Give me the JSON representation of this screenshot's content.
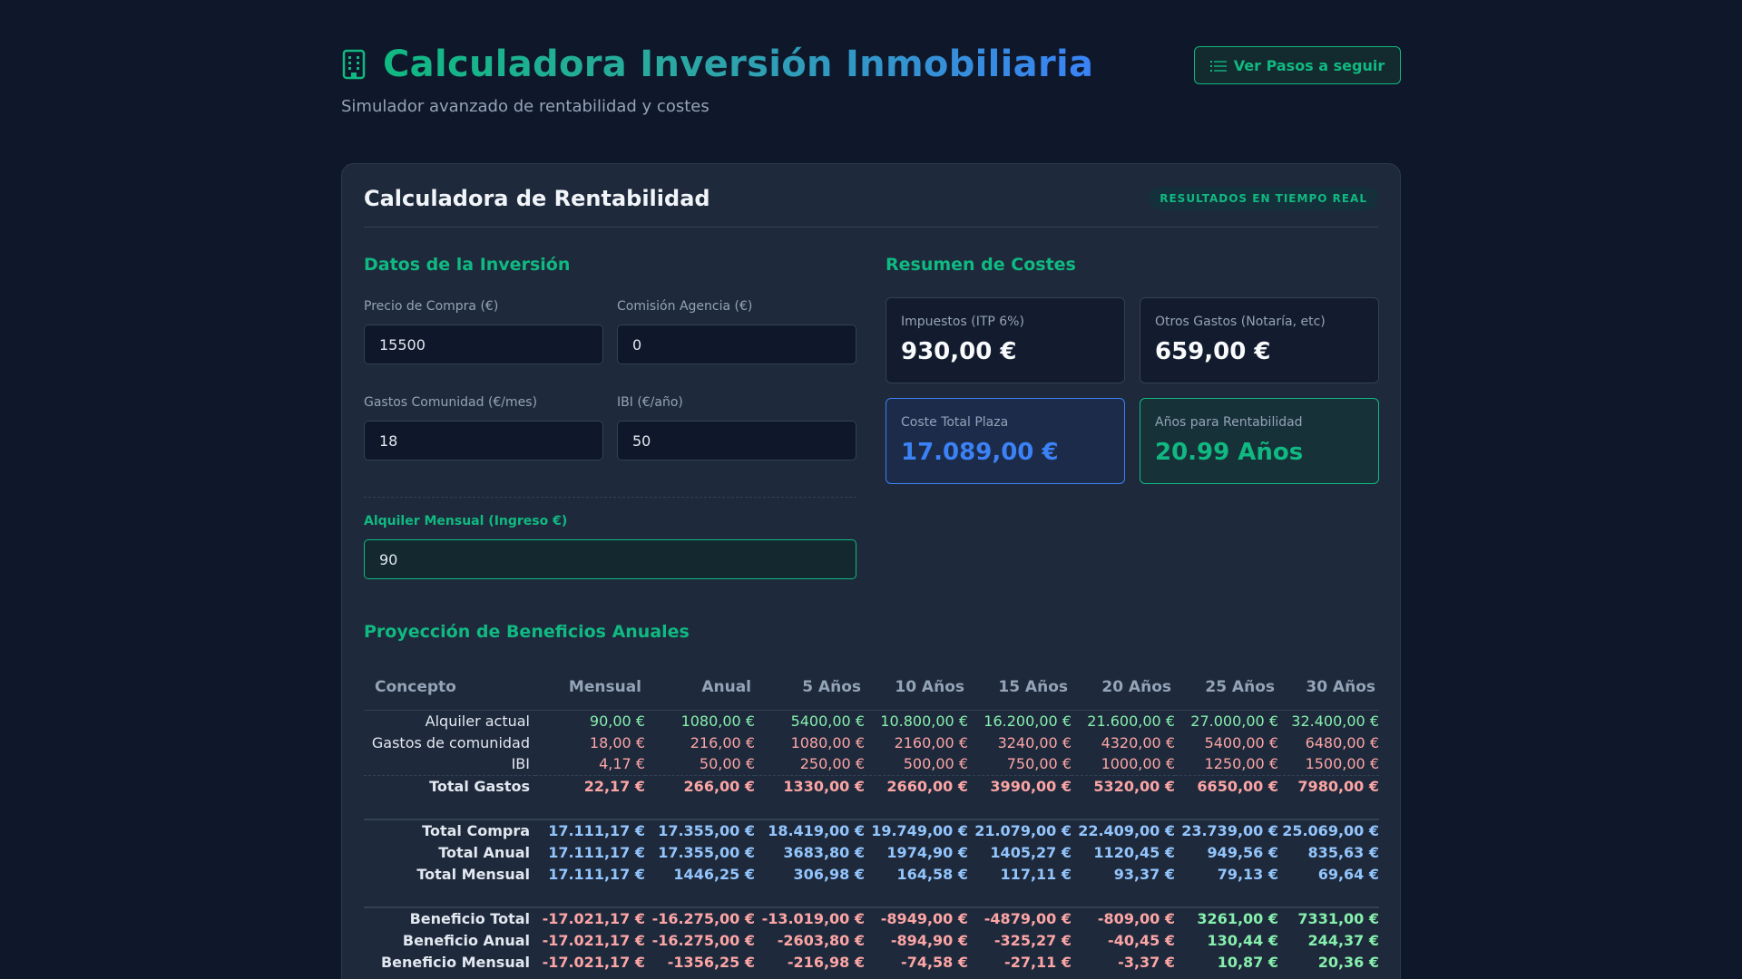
{
  "header": {
    "title": "Calculadora Inversión Inmobiliaria",
    "subtitle": "Simulador avanzado de rentabilidad y costes",
    "steps_button": "Ver Pasos a seguir"
  },
  "card": {
    "title": "Calculadora de Rentabilidad",
    "badge": "RESULTADOS EN TIEMPO REAL"
  },
  "inputs": {
    "section_title": "Datos de la Inversión",
    "purchase_price": {
      "label": "Precio de Compra (€)",
      "value": "15500"
    },
    "agency_fee": {
      "label": "Comisión Agencia (€)",
      "value": "0"
    },
    "community_fees": {
      "label": "Gastos Comunidad (€/mes)",
      "value": "18"
    },
    "ibi": {
      "label": "IBI (€/año)",
      "value": "50"
    },
    "rent": {
      "label": "Alquiler Mensual (Ingreso €)",
      "value": "90"
    }
  },
  "summary": {
    "section_title": "Resumen de Costes",
    "taxes": {
      "label": "Impuestos (ITP 6%)",
      "value": "930,00 €"
    },
    "other": {
      "label": "Otros Gastos (Notaría, etc)",
      "value": "659,00 €"
    },
    "total": {
      "label": "Coste Total Plaza",
      "value": "17.089,00 €"
    },
    "years": {
      "label": "Años para Rentabilidad",
      "value": "20.99 Años"
    }
  },
  "projection": {
    "section_title": "Proyección de Beneficios Anuales",
    "columns": [
      "Concepto",
      "Mensual",
      "Anual",
      "5 Años",
      "10 Años",
      "15 Años",
      "20 Años",
      "25 Años",
      "30 Años"
    ],
    "rows": [
      {
        "label": "Alquiler actual",
        "values": [
          "90,00 €",
          "1080,00 €",
          "5400,00 €",
          "10.800,00 €",
          "16.200,00 €",
          "21.600,00 €",
          "27.000,00 €",
          "32.400,00 €"
        ]
      },
      {
        "label": "Gastos de comunidad",
        "values": [
          "18,00 €",
          "216,00 €",
          "1080,00 €",
          "2160,00 €",
          "3240,00 €",
          "4320,00 €",
          "5400,00 €",
          "6480,00 €"
        ]
      },
      {
        "label": "IBI",
        "values": [
          "4,17 €",
          "50,00 €",
          "250,00 €",
          "500,00 €",
          "750,00 €",
          "1000,00 €",
          "1250,00 €",
          "1500,00 €"
        ]
      },
      {
        "label": "Total Gastos",
        "values": [
          "22,17 €",
          "266,00 €",
          "1330,00 €",
          "2660,00 €",
          "3990,00 €",
          "5320,00 €",
          "6650,00 €",
          "7980,00 €"
        ]
      },
      {
        "label": "Total Compra",
        "values": [
          "17.111,17 €",
          "17.355,00 €",
          "18.419,00 €",
          "19.749,00 €",
          "21.079,00 €",
          "22.409,00 €",
          "23.739,00 €",
          "25.069,00 €"
        ]
      },
      {
        "label": "Total Anual",
        "values": [
          "17.111,17 €",
          "17.355,00 €",
          "3683,80 €",
          "1974,90 €",
          "1405,27 €",
          "1120,45 €",
          "949,56 €",
          "835,63 €"
        ]
      },
      {
        "label": "Total Mensual",
        "values": [
          "17.111,17 €",
          "1446,25 €",
          "306,98 €",
          "164,58 €",
          "117,11 €",
          "93,37 €",
          "79,13 €",
          "69,64 €"
        ]
      },
      {
        "label": "Beneficio Total",
        "values": [
          "-17.021,17 €",
          "-16.275,00 €",
          "-13.019,00 €",
          "-8949,00 €",
          "-4879,00 €",
          "-809,00 €",
          "3261,00 €",
          "7331,00 €"
        ]
      },
      {
        "label": "Beneficio Anual",
        "values": [
          "-17.021,17 €",
          "-16.275,00 €",
          "-2603,80 €",
          "-894,90 €",
          "-325,27 €",
          "-40,45 €",
          "130,44 €",
          "244,37 €"
        ]
      },
      {
        "label": "Beneficio Mensual",
        "values": [
          "-17.021,17 €",
          "-1356,25 €",
          "-216,98 €",
          "-74,58 €",
          "-27,11 €",
          "-3,37 €",
          "10,87 €",
          "20,36 €"
        ]
      }
    ]
  },
  "colors": {
    "accent": "#10b981",
    "blue": "#3b82f6",
    "background": "#0f172a",
    "card": "#1e293b"
  }
}
